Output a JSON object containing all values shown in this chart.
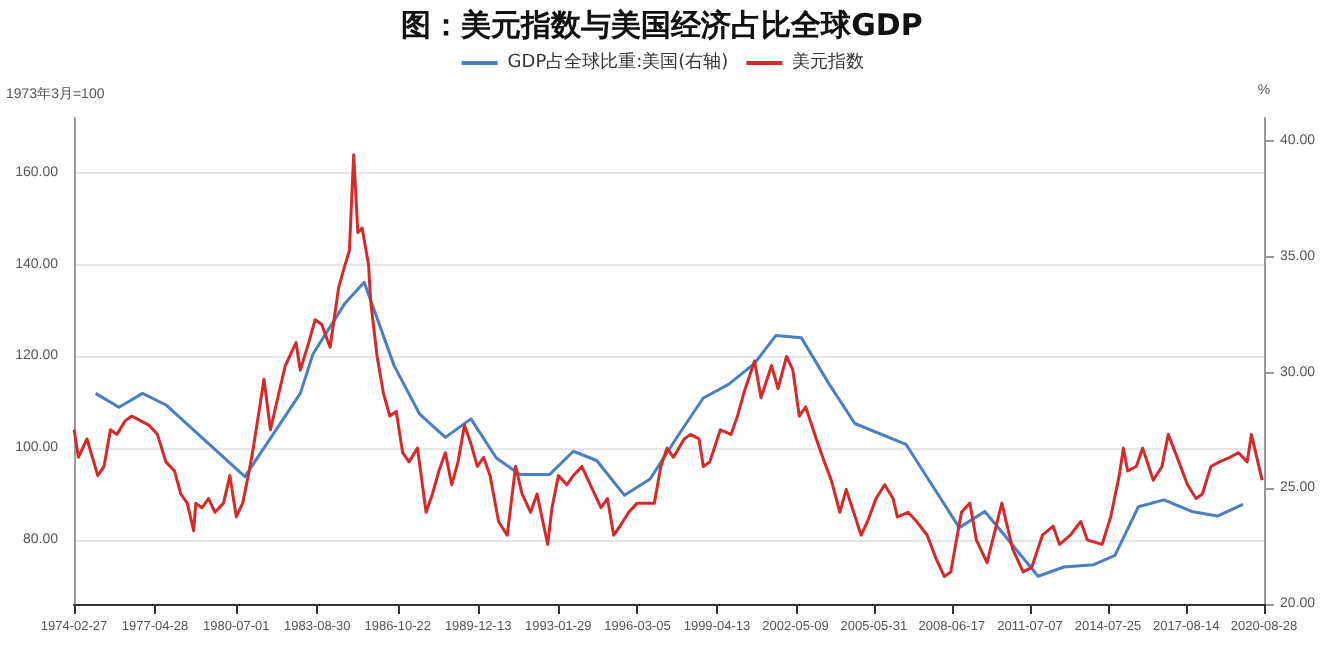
{
  "chart_data": {
    "type": "line",
    "title": "图：美元指数与美国经济占比全球GDP",
    "ylabel": "1973年3月=100",
    "y2label": "%",
    "legend": "top",
    "grid": "y",
    "marker": "none",
    "line_style": "solid",
    "xlim": [
      "1974-02-27",
      "2020-08-28"
    ],
    "xticks": [
      {
        "value": "1974-02-27",
        "label": "1974-02-27"
      },
      {
        "value": "1977-04-28",
        "label": "1977-04-28"
      },
      {
        "value": "1980-07-01",
        "label": "1980-07-01"
      },
      {
        "value": "1983-08-30",
        "label": "1983-08-30"
      },
      {
        "value": "1986-10-22",
        "label": "1986-10-22"
      },
      {
        "value": "1989-12-13",
        "label": "1989-12-13"
      },
      {
        "value": "1993-01-29",
        "label": "1993-01-29"
      },
      {
        "value": "1996-03-05",
        "label": "1996-03-05"
      },
      {
        "value": "1999-04-13",
        "label": "1999-04-13"
      },
      {
        "value": "2002-05-09",
        "label": "2002-05-09"
      },
      {
        "value": "2005-05-31",
        "label": "2005-05-31"
      },
      {
        "value": "2008-06-17",
        "label": "2008-06-17"
      },
      {
        "value": "2011-07-07",
        "label": "2011-07-07"
      },
      {
        "value": "2014-07-25",
        "label": "2014-07-25"
      },
      {
        "value": "2017-08-14",
        "label": "2017-08-14"
      },
      {
        "value": "2020-08-28",
        "label": "2020-08-28"
      }
    ],
    "ylim": [
      66,
      172
    ],
    "yticks": [
      {
        "value": 80,
        "label": "80.00"
      },
      {
        "value": 100,
        "label": "100.00"
      },
      {
        "value": 120,
        "label": "120.00"
      },
      {
        "value": 140,
        "label": "140.00"
      },
      {
        "value": 160,
        "label": "160.00"
      }
    ],
    "y2lim": [
      20,
      41
    ],
    "y2ticks": [
      {
        "value": 20,
        "label": "20.00"
      },
      {
        "value": 25,
        "label": "25.00"
      },
      {
        "value": 30,
        "label": "30.00"
      },
      {
        "value": 35,
        "label": "35.00"
      },
      {
        "value": 40,
        "label": "40.00"
      }
    ],
    "series": [
      {
        "name": "GDP占全球比重:美国(右轴)",
        "color": "#4a7fc1",
        "axis": "y2",
        "x": [
          "1975-01",
          "1975-12",
          "1976-11",
          "1977-10",
          "1980-11",
          "1983-01",
          "1983-07",
          "1984-10",
          "1985-07",
          "1986-09",
          "1987-09",
          "1988-09",
          "1989-09",
          "1990-09",
          "1991-08",
          "1992-10",
          "1993-09",
          "1994-08",
          "1995-09",
          "1996-09",
          "1997-11",
          "1998-10",
          "1999-10",
          "2000-10",
          "2001-08",
          "2002-08",
          "2003-09",
          "2004-09",
          "2006-09",
          "2008-10",
          "2009-10",
          "2011-11",
          "2012-11",
          "2014-01",
          "2014-11",
          "2015-10",
          "2016-10",
          "2017-11",
          "2018-11",
          "2019-11"
        ],
        "values": [
          29.1,
          28.5,
          29.1,
          28.6,
          25.5,
          29.1,
          30.8,
          33.0,
          33.9,
          30.3,
          28.2,
          27.2,
          28.0,
          26.3,
          25.6,
          25.6,
          26.6,
          26.2,
          24.7,
          25.4,
          27.4,
          28.9,
          29.5,
          30.4,
          31.6,
          31.5,
          29.5,
          27.8,
          26.9,
          23.3,
          24.0,
          21.2,
          21.6,
          21.7,
          22.1,
          24.2,
          24.5,
          24.0,
          23.8,
          24.3
        ]
      },
      {
        "name": "美元指数",
        "color": "#d42a2a",
        "x": [
          "1974-03",
          "1974-05",
          "1974-09",
          "1975-02",
          "1975-05",
          "1975-08",
          "1975-11",
          "1976-03",
          "1976-06",
          "1976-10",
          "1977-02",
          "1977-06",
          "1977-10",
          "1978-02",
          "1978-05",
          "1978-08",
          "1978-11",
          "1978-12",
          "1979-03",
          "1979-06",
          "1979-09",
          "1980-01",
          "1980-04",
          "1980-07",
          "1980-10",
          "1981-01",
          "1981-03",
          "1981-08",
          "1981-11",
          "1982-03",
          "1982-06",
          "1982-11",
          "1983-01",
          "1983-05",
          "1983-08",
          "1983-11",
          "1984-03",
          "1984-07",
          "1984-10",
          "1984-12",
          "1985-02",
          "1985-04",
          "1985-06",
          "1985-09",
          "1985-10",
          "1986-01",
          "1986-04",
          "1986-07",
          "1986-10",
          "1987-01",
          "1987-04",
          "1987-08",
          "1987-12",
          "1988-03",
          "1988-06",
          "1988-09",
          "1988-12",
          "1989-03",
          "1989-06",
          "1989-09",
          "1989-12",
          "1990-03",
          "1990-06",
          "1990-10",
          "1991-02",
          "1991-06",
          "1991-09",
          "1992-01",
          "1992-04",
          "1992-09",
          "1992-11",
          "1993-02",
          "1993-06",
          "1993-09",
          "1994-01",
          "1994-06",
          "1994-10",
          "1995-01",
          "1995-04",
          "1995-07",
          "1995-11",
          "1996-03",
          "1996-07",
          "1996-11",
          "1997-02",
          "1997-05",
          "1997-08",
          "1998-01",
          "1998-04",
          "1998-08",
          "1998-10",
          "1999-01",
          "1999-06",
          "1999-11",
          "2000-02",
          "2000-05",
          "2000-10",
          "2001-01",
          "2001-06",
          "2001-09",
          "2002-01",
          "2002-04",
          "2002-07",
          "2002-10",
          "2003-03",
          "2003-06",
          "2003-10",
          "2004-02",
          "2004-05",
          "2004-12",
          "2005-03",
          "2005-07",
          "2005-11",
          "2006-03",
          "2006-05",
          "2006-10",
          "2007-02",
          "2007-07",
          "2007-11",
          "2008-03",
          "2008-06",
          "2008-11",
          "2009-03",
          "2009-06",
          "2009-11",
          "2010-06",
          "2010-11",
          "2011-04",
          "2011-08",
          "2012-01",
          "2012-06",
          "2012-09",
          "2013-02",
          "2013-07",
          "2013-10",
          "2014-05",
          "2014-09",
          "2015-01",
          "2015-03",
          "2015-05",
          "2015-09",
          "2015-12",
          "2016-05",
          "2016-09",
          "2016-12",
          "2017-05",
          "2017-09",
          "2018-01",
          "2018-04",
          "2018-08",
          "2018-12",
          "2019-05",
          "2019-09",
          "2020-01",
          "2020-03",
          "2020-05",
          "2020-08"
        ],
        "values": [
          104,
          98,
          102,
          94,
          96,
          104,
          103,
          106,
          107,
          106,
          105,
          103,
          97,
          95,
          90,
          88,
          82,
          88,
          87,
          89,
          86,
          88,
          94,
          85,
          88,
          95,
          100,
          115,
          104,
          112,
          118,
          123,
          117,
          123,
          128,
          127,
          122,
          135,
          140,
          143,
          164,
          147,
          148,
          140,
          132,
          120,
          112,
          107,
          108,
          99,
          97,
          100,
          86,
          90,
          95,
          99,
          92,
          97,
          105,
          101,
          96,
          98,
          94,
          84,
          81,
          96,
          90,
          86,
          90,
          79,
          87,
          94,
          92,
          94,
          96,
          91,
          87,
          89,
          81,
          83,
          86,
          88,
          88,
          88,
          96,
          100,
          98,
          102,
          103,
          102,
          96,
          97,
          104,
          103,
          107,
          112,
          119,
          111,
          118,
          113,
          120,
          117,
          107,
          109,
          102,
          98,
          93,
          86,
          91,
          81,
          84,
          89,
          92,
          89,
          85,
          86,
          84,
          81,
          76,
          72,
          73,
          86,
          88,
          80,
          75,
          88,
          78,
          73,
          74,
          81,
          83,
          79,
          81,
          84,
          80,
          79,
          85,
          94,
          100,
          95,
          96,
          100,
          93,
          96,
          103,
          97,
          92,
          89,
          90,
          96,
          97,
          98,
          99,
          97,
          103,
          99,
          93
        ]
      }
    ]
  }
}
